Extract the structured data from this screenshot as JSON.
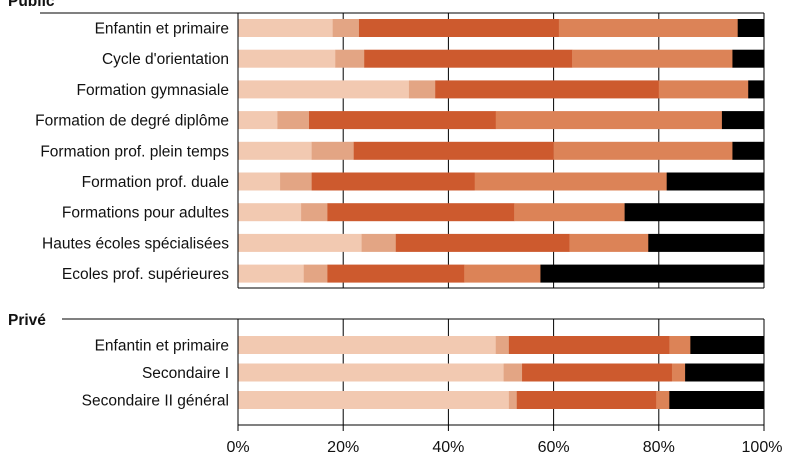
{
  "chart_data": {
    "type": "bar",
    "orientation": "horizontal",
    "stacked": true,
    "xlim": [
      0,
      100
    ],
    "x_ticks": [
      "0%",
      "20%",
      "40%",
      "60%",
      "80%",
      "100%"
    ],
    "grid": true,
    "colors": [
      "#f2c9b1",
      "#e3a584",
      "#cd5a2e",
      "#dc8357",
      "#000000"
    ],
    "groups": [
      {
        "name": "Public",
        "categories": [
          "Enfantin et primaire",
          "Cycle d'orientation",
          "Formation gymnasiale",
          "Formation de degré diplôme",
          "Formation prof. plein temps",
          "Formation prof. duale",
          "Formations pour adultes",
          "Hautes écoles spécialisées",
          "Ecoles prof. supérieures"
        ],
        "segments": [
          [
            18,
            5,
            38,
            34,
            5
          ],
          [
            18.5,
            5.5,
            39.5,
            30.5,
            6
          ],
          [
            32.5,
            5,
            42.5,
            17,
            3
          ],
          [
            7.5,
            6,
            35.5,
            43,
            8
          ],
          [
            14,
            8,
            38,
            34,
            6
          ],
          [
            8,
            6,
            31,
            36.5,
            18.5
          ],
          [
            12,
            5,
            35.5,
            21,
            26.5
          ],
          [
            23.5,
            6.5,
            33,
            15,
            22
          ],
          [
            12.5,
            4.5,
            26,
            14.5,
            42.5
          ]
        ]
      },
      {
        "name": "Privé",
        "categories": [
          "Enfantin et primaire",
          "Secondaire I",
          "Secondaire II général"
        ],
        "segments": [
          [
            49,
            2.5,
            30.5,
            4,
            14
          ],
          [
            50.5,
            3.5,
            28.5,
            2.5,
            15
          ],
          [
            51.5,
            1.5,
            26.5,
            2.5,
            18
          ]
        ]
      }
    ]
  }
}
